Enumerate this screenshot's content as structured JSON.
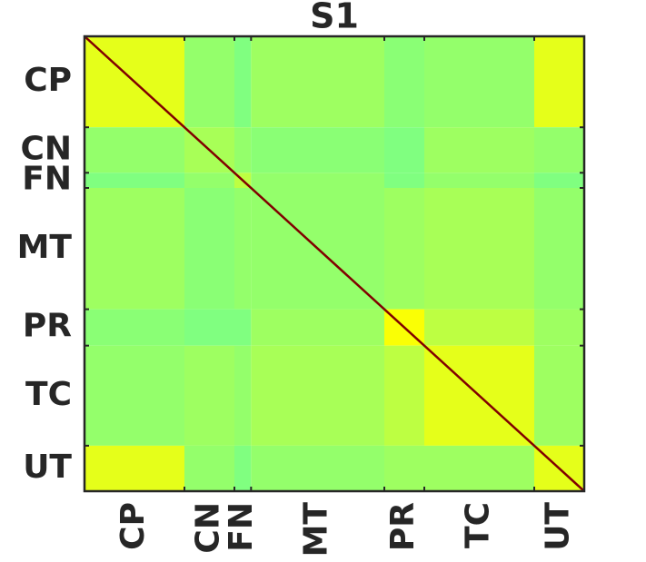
{
  "chart_data": {
    "type": "heatmap",
    "title": "S1",
    "groups": [
      "CP",
      "CN",
      "FN",
      "MT",
      "PR",
      "TC",
      "UT"
    ],
    "group_boundaries": [
      0,
      30,
      45,
      50,
      90,
      102,
      135,
      150
    ],
    "xlim": [
      0,
      150
    ],
    "ylim": [
      0,
      150
    ],
    "colormap": "jet",
    "clim": [
      0,
      1
    ],
    "matrix": [
      [
        0.6,
        0.52,
        0.5,
        0.53,
        0.51,
        0.52,
        0.6
      ],
      [
        0.52,
        0.54,
        0.52,
        0.51,
        0.5,
        0.53,
        0.52
      ],
      [
        0.5,
        0.52,
        0.56,
        0.52,
        0.5,
        0.52,
        0.5
      ],
      [
        0.53,
        0.51,
        0.52,
        0.52,
        0.53,
        0.54,
        0.52
      ],
      [
        0.51,
        0.5,
        0.5,
        0.53,
        0.62,
        0.56,
        0.53
      ],
      [
        0.52,
        0.53,
        0.52,
        0.54,
        0.56,
        0.6,
        0.53
      ],
      [
        0.6,
        0.52,
        0.5,
        0.52,
        0.53,
        0.53,
        0.6
      ]
    ],
    "diagonal": 1
  }
}
